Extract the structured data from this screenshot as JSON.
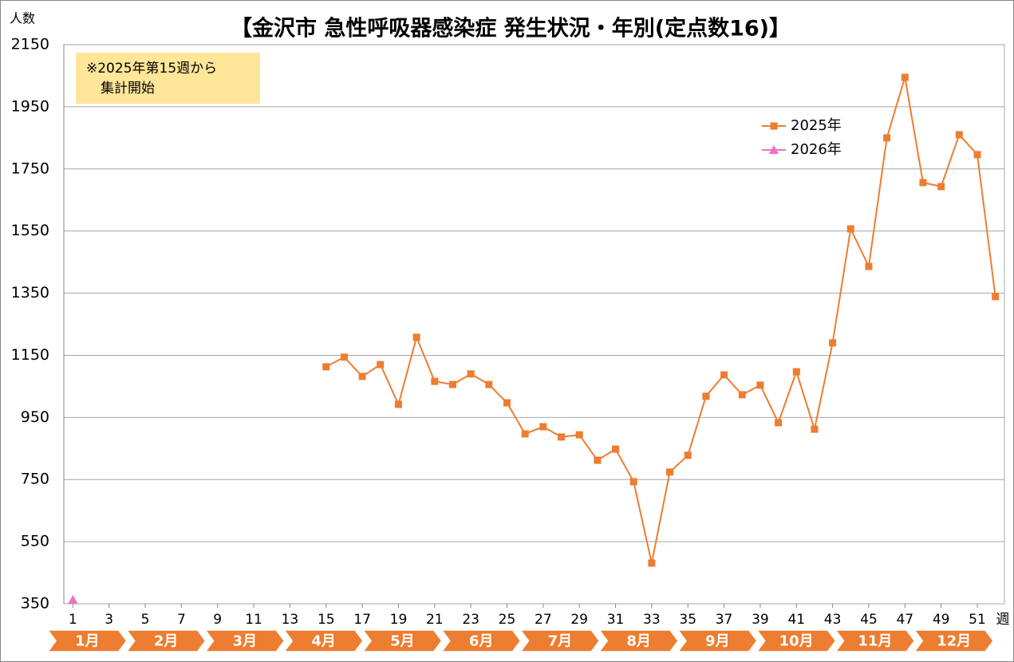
{
  "chart_data": {
    "type": "line",
    "title": "【金沢市 急性呼吸器感染症 発生状況・年別(定点数16)】",
    "y_label": "人数",
    "x_label": "週",
    "annotation": [
      "※2025年第15週から",
      "集計開始"
    ],
    "months": [
      "1月",
      "2月",
      "3月",
      "4月",
      "5月",
      "6月",
      "7月",
      "8月",
      "9月",
      "10月",
      "11月",
      "12月"
    ],
    "x": [
      1,
      2,
      3,
      4,
      5,
      6,
      7,
      8,
      9,
      10,
      11,
      12,
      13,
      14,
      15,
      16,
      17,
      18,
      19,
      20,
      21,
      22,
      23,
      24,
      25,
      26,
      27,
      28,
      29,
      30,
      31,
      32,
      33,
      34,
      35,
      36,
      37,
      38,
      39,
      40,
      41,
      42,
      43,
      44,
      45,
      46,
      47,
      48,
      49,
      50,
      51,
      52
    ],
    "xlim": [
      0.5,
      52.5
    ],
    "xticks": [
      1,
      3,
      5,
      7,
      9,
      11,
      13,
      15,
      17,
      19,
      21,
      23,
      25,
      27,
      29,
      31,
      33,
      35,
      37,
      39,
      41,
      43,
      45,
      47,
      49,
      51
    ],
    "ylim": [
      350,
      2150
    ],
    "yticks": [
      350,
      550,
      750,
      950,
      1150,
      1350,
      1550,
      1750,
      1950,
      2150
    ],
    "grid": true,
    "legend": "upper right",
    "series": [
      {
        "name": "2025年",
        "color": "#ed7d31",
        "marker": "square",
        "values": [
          null,
          null,
          null,
          null,
          null,
          null,
          null,
          null,
          null,
          null,
          null,
          null,
          null,
          null,
          1113,
          1144,
          1082,
          1120,
          992,
          1208,
          1066,
          1056,
          1090,
          1056,
          997,
          897,
          920,
          887,
          894,
          812,
          848,
          743,
          481,
          774,
          828,
          1018,
          1087,
          1023,
          1054,
          933,
          1097,
          912,
          1190,
          1557,
          1436,
          1850,
          2045,
          1706,
          1693,
          1860,
          1796,
          1339
        ]
      },
      {
        "name": "2026年",
        "color": "#f06ec4",
        "marker": "triangle",
        "values": [
          363,
          null,
          null,
          null,
          null,
          null,
          null,
          null,
          null,
          null,
          null,
          null,
          null,
          null,
          null,
          null,
          null,
          null,
          null,
          null,
          null,
          null,
          null,
          null,
          null,
          null,
          null,
          null,
          null,
          null,
          null,
          null,
          null,
          null,
          null,
          null,
          null,
          null,
          null,
          null,
          null,
          null,
          null,
          null,
          null,
          null,
          null,
          null,
          null,
          null,
          null,
          null
        ]
      }
    ]
  }
}
